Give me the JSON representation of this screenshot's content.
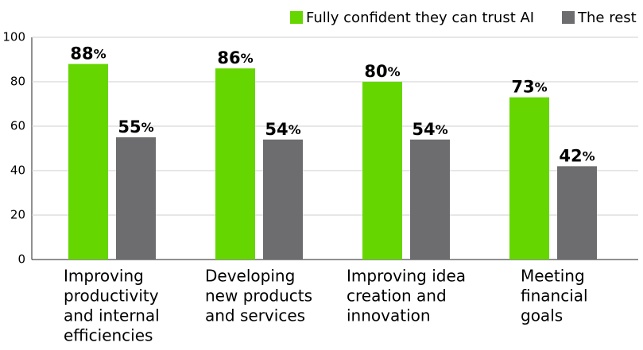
{
  "chart_data": {
    "type": "bar",
    "categories": [
      [
        "Improving",
        "productivity",
        "and internal",
        "efficiencies"
      ],
      [
        "Developing",
        "new products",
        "and services"
      ],
      [
        "Improving idea",
        "creation and",
        "innovation"
      ],
      [
        "Meeting",
        "financial",
        "goals"
      ]
    ],
    "series": [
      {
        "name": "Fully confident they can trust AI",
        "color": "#66d600",
        "values": [
          88,
          86,
          80,
          73
        ],
        "value_labels": [
          "88%",
          "86%",
          "80%",
          "73%"
        ]
      },
      {
        "name": "The rest",
        "color": "#6d6d6f",
        "values": [
          55,
          54,
          54,
          42
        ],
        "value_labels": [
          "55%",
          "54%",
          "54%",
          "42%"
        ]
      }
    ],
    "ylim": [
      0,
      100
    ],
    "yticks": [
      0,
      20,
      40,
      60,
      80,
      100
    ],
    "grid": true,
    "legend": "top-right"
  }
}
